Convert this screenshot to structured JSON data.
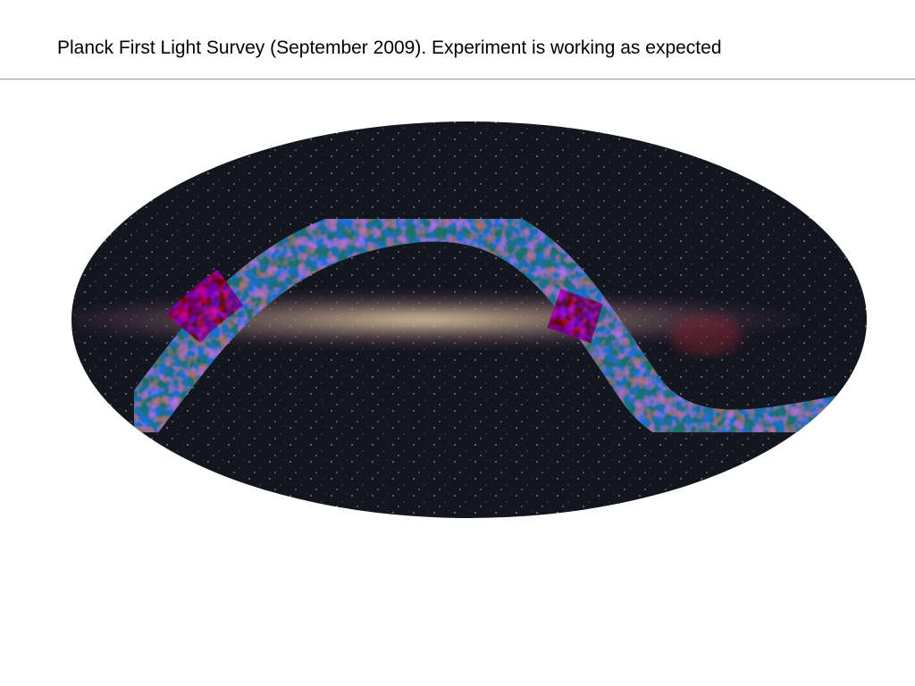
{
  "header": {
    "title": "Planck First Light Survey (September 2009). Experiment is working as expected"
  }
}
